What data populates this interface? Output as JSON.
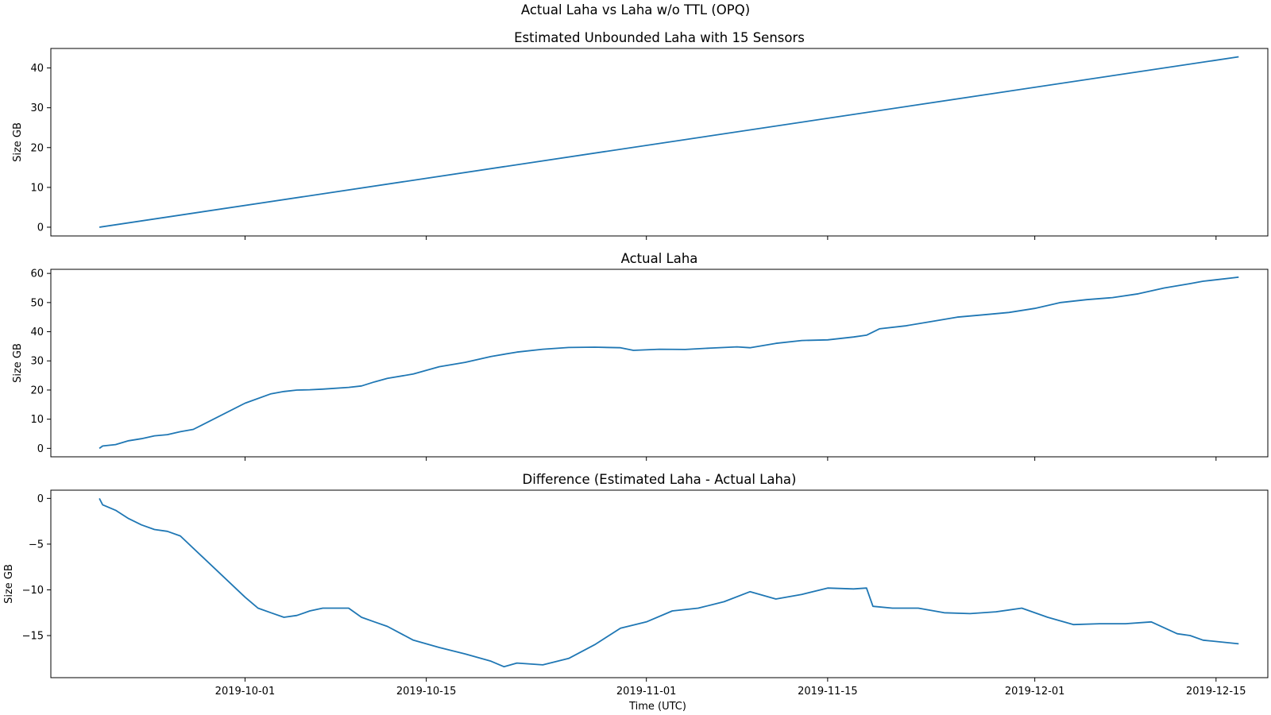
{
  "figure": {
    "suptitle": "Actual Laha vs Laha w/o TTL (OPQ)",
    "xlabel": "Time (UTC)"
  },
  "colors": {
    "line": "#1f77b4",
    "axes": "#000000",
    "background": "#ffffff"
  },
  "chart_data": [
    {
      "type": "line",
      "title": "Estimated Unbounded Laha with 15 Sensors",
      "xlabel": "",
      "ylabel": "Size GB",
      "grid": false,
      "xlim": [
        "2019-09-16",
        "2019-12-19"
      ],
      "ylim": [
        -2.2,
        44.9
      ],
      "x_ticks": [],
      "y_ticks": [
        0,
        10,
        20,
        30,
        40
      ],
      "y_tick_labels": [
        "0",
        "10",
        "20",
        "30",
        "40"
      ],
      "series": [
        {
          "points": [
            [
              "2019-09-19T18:00",
              0
            ],
            [
              "2019-12-16T18:00",
              42.8
            ]
          ]
        }
      ]
    },
    {
      "type": "line",
      "title": "Actual Laha",
      "xlabel": "",
      "ylabel": "Size GB",
      "grid": false,
      "xlim": [
        "2019-09-16",
        "2019-12-19"
      ],
      "ylim": [
        -2.9,
        61.4
      ],
      "x_ticks": [],
      "y_ticks": [
        0,
        10,
        20,
        30,
        40,
        50,
        60
      ],
      "y_tick_labels": [
        "0",
        "10",
        "20",
        "30",
        "40",
        "50",
        "60"
      ],
      "series": [
        {
          "points": [
            [
              "2019-09-19T18:00",
              0
            ],
            [
              "2019-09-20",
              0.8
            ],
            [
              "2019-09-21",
              1.3
            ],
            [
              "2019-09-22",
              2.6
            ],
            [
              "2019-09-23",
              3.3
            ],
            [
              "2019-09-24",
              4.3
            ],
            [
              "2019-09-25",
              4.7
            ],
            [
              "2019-09-26",
              5.7
            ],
            [
              "2019-09-27",
              6.5
            ],
            [
              "2019-10-01",
              15.5
            ],
            [
              "2019-10-03",
              18.7
            ],
            [
              "2019-10-04",
              19.5
            ],
            [
              "2019-10-05",
              20.0
            ],
            [
              "2019-10-06",
              20.1
            ],
            [
              "2019-10-07",
              20.3
            ],
            [
              "2019-10-09",
              20.9
            ],
            [
              "2019-10-10",
              21.4
            ],
            [
              "2019-10-11",
              22.8
            ],
            [
              "2019-10-12",
              24.0
            ],
            [
              "2019-10-14",
              25.5
            ],
            [
              "2019-10-16",
              28.0
            ],
            [
              "2019-10-18",
              29.5
            ],
            [
              "2019-10-20",
              31.5
            ],
            [
              "2019-10-22",
              33.0
            ],
            [
              "2019-10-24",
              34.0
            ],
            [
              "2019-10-26",
              34.6
            ],
            [
              "2019-10-28",
              34.7
            ],
            [
              "2019-10-30",
              34.5
            ],
            [
              "2019-10-31",
              33.6
            ],
            [
              "2019-11-02",
              34.0
            ],
            [
              "2019-11-04",
              33.9
            ],
            [
              "2019-11-06",
              34.4
            ],
            [
              "2019-11-08",
              34.8
            ],
            [
              "2019-11-09",
              34.5
            ],
            [
              "2019-11-11",
              36.0
            ],
            [
              "2019-11-13",
              37.0
            ],
            [
              "2019-11-15",
              37.2
            ],
            [
              "2019-11-17",
              38.2
            ],
            [
              "2019-11-18",
              38.8
            ],
            [
              "2019-11-19",
              41.0
            ],
            [
              "2019-11-21",
              42.0
            ],
            [
              "2019-11-23",
              43.5
            ],
            [
              "2019-11-25",
              45.0
            ],
            [
              "2019-11-27",
              45.8
            ],
            [
              "2019-11-29",
              46.6
            ],
            [
              "2019-12-01",
              48.0
            ],
            [
              "2019-12-03",
              50.0
            ],
            [
              "2019-12-05",
              51.0
            ],
            [
              "2019-12-07",
              51.7
            ],
            [
              "2019-12-09",
              53.0
            ],
            [
              "2019-12-11",
              55.0
            ],
            [
              "2019-12-13",
              56.5
            ],
            [
              "2019-12-14",
              57.3
            ],
            [
              "2019-12-16T18:00",
              58.7
            ]
          ]
        }
      ]
    },
    {
      "type": "line",
      "title": "Difference (Estimated Laha - Actual Laha)",
      "xlabel": "Time (UTC)",
      "ylabel": "Size GB",
      "grid": false,
      "xlim": [
        "2019-09-16",
        "2019-12-19"
      ],
      "ylim": [
        -19.6,
        0.9
      ],
      "x_ticks": [
        "2019-10-01",
        "2019-10-15",
        "2019-11-01",
        "2019-11-15",
        "2019-12-01",
        "2019-12-15"
      ],
      "x_tick_labels": [
        "2019-10-01",
        "2019-10-15",
        "2019-11-01",
        "2019-11-15",
        "2019-12-01",
        "2019-12-15"
      ],
      "y_ticks": [
        0,
        -5,
        -10,
        -15
      ],
      "y_tick_labels": [
        "0",
        "−5",
        "−10",
        "−15"
      ],
      "series": [
        {
          "points": [
            [
              "2019-09-19T18:00",
              0
            ],
            [
              "2019-09-20",
              -0.7
            ],
            [
              "2019-09-21",
              -1.3
            ],
            [
              "2019-09-22",
              -2.2
            ],
            [
              "2019-09-23",
              -2.9
            ],
            [
              "2019-09-24",
              -3.4
            ],
            [
              "2019-09-25",
              -3.6
            ],
            [
              "2019-09-26",
              -4.1
            ],
            [
              "2019-10-01",
              -10.8
            ],
            [
              "2019-10-02",
              -12.0
            ],
            [
              "2019-10-03",
              -12.5
            ],
            [
              "2019-10-04",
              -13.0
            ],
            [
              "2019-10-05",
              -12.8
            ],
            [
              "2019-10-06",
              -12.3
            ],
            [
              "2019-10-07",
              -12.0
            ],
            [
              "2019-10-09",
              -12.0
            ],
            [
              "2019-10-10",
              -13.0
            ],
            [
              "2019-10-11",
              -13.5
            ],
            [
              "2019-10-12",
              -14.0
            ],
            [
              "2019-10-14",
              -15.5
            ],
            [
              "2019-10-16",
              -16.3
            ],
            [
              "2019-10-18",
              -17.0
            ],
            [
              "2019-10-20",
              -17.8
            ],
            [
              "2019-10-21",
              -18.4
            ],
            [
              "2019-10-22",
              -18.0
            ],
            [
              "2019-10-24",
              -18.2
            ],
            [
              "2019-10-26",
              -17.5
            ],
            [
              "2019-10-28",
              -16.0
            ],
            [
              "2019-10-30",
              -14.2
            ],
            [
              "2019-11-01",
              -13.5
            ],
            [
              "2019-11-03",
              -12.3
            ],
            [
              "2019-11-05",
              -12.0
            ],
            [
              "2019-11-07",
              -11.3
            ],
            [
              "2019-11-09",
              -10.2
            ],
            [
              "2019-11-11",
              -11.0
            ],
            [
              "2019-11-13",
              -10.5
            ],
            [
              "2019-11-15",
              -9.8
            ],
            [
              "2019-11-17",
              -9.9
            ],
            [
              "2019-11-18",
              -9.8
            ],
            [
              "2019-11-18T12:00",
              -11.8
            ],
            [
              "2019-11-20",
              -12.0
            ],
            [
              "2019-11-22",
              -12.0
            ],
            [
              "2019-11-24",
              -12.5
            ],
            [
              "2019-11-26",
              -12.6
            ],
            [
              "2019-11-28",
              -12.4
            ],
            [
              "2019-11-30",
              -12.0
            ],
            [
              "2019-12-02",
              -13.0
            ],
            [
              "2019-12-04",
              -13.8
            ],
            [
              "2019-12-06",
              -13.7
            ],
            [
              "2019-12-08",
              -13.7
            ],
            [
              "2019-12-10",
              -13.5
            ],
            [
              "2019-12-12",
              -14.8
            ],
            [
              "2019-12-13",
              -15.0
            ],
            [
              "2019-12-14",
              -15.5
            ],
            [
              "2019-12-16T18:00",
              -15.9
            ]
          ]
        }
      ]
    }
  ]
}
